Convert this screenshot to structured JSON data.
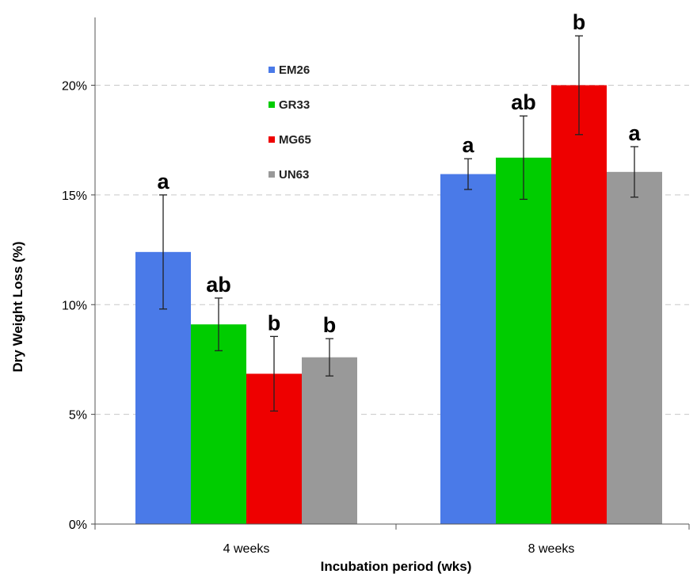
{
  "chart_data": {
    "type": "bar",
    "title": "",
    "xlabel": "Incubation period (wks)",
    "ylabel": "Dry Weight Loss (%)",
    "ylim": [
      0,
      24
    ],
    "yticks": [
      {
        "value": 0,
        "label": "0%"
      },
      {
        "value": 5,
        "label": "5%"
      },
      {
        "value": 10,
        "label": "10%"
      },
      {
        "value": 15,
        "label": "15%"
      },
      {
        "value": 20,
        "label": "20%"
      }
    ],
    "grid": "horizontal dashed",
    "legend_position": "top-left",
    "categories": [
      "4 weeks",
      "8 weeks"
    ],
    "series": [
      {
        "name": "EM26",
        "color": "#4a7ae8",
        "values": [
          12.4,
          15.95
        ],
        "errors": [
          2.6,
          0.7
        ],
        "sig": [
          "a",
          "a"
        ]
      },
      {
        "name": "GR33",
        "color": "#00cc00",
        "values": [
          9.1,
          16.7
        ],
        "errors": [
          1.2,
          1.9
        ],
        "sig": [
          "ab",
          "ab"
        ]
      },
      {
        "name": "MG65",
        "color": "#ee0000",
        "values": [
          6.85,
          20.0
        ],
        "errors": [
          1.7,
          2.25
        ],
        "sig": [
          "b",
          "b"
        ]
      },
      {
        "name": "UN63",
        "color": "#999999",
        "values": [
          7.6,
          16.05
        ],
        "errors": [
          0.85,
          1.15
        ],
        "sig": [
          "b",
          "a"
        ]
      }
    ]
  }
}
